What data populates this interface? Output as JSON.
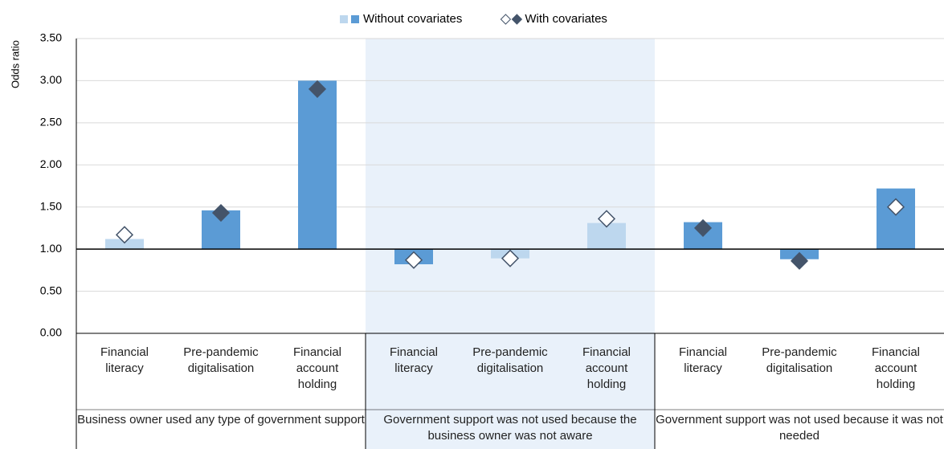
{
  "chart_data": {
    "type": "bar",
    "y_label": "Odds ratio",
    "ylim": [
      0,
      3.5
    ],
    "yticks": [
      {
        "value": 0,
        "label": "0.00"
      },
      {
        "value": 0.5,
        "label": "0.50"
      },
      {
        "value": 1,
        "label": "1.00"
      },
      {
        "value": 1.5,
        "label": "1.50"
      },
      {
        "value": 2,
        "label": "2.00"
      },
      {
        "value": 2.5,
        "label": "2.50"
      },
      {
        "value": 3,
        "label": "3.00"
      },
      {
        "value": 3.5,
        "label": "3.50"
      }
    ],
    "baseline": 1,
    "grid": true,
    "legend": "top",
    "categories": [
      "Financial literacy",
      "Pre-pandemic digitalisation",
      "Financial account holding",
      "Financial literacy",
      "Pre-pandemic digitalisation",
      "Financial account holding",
      "Financial literacy",
      "Pre-pandemic digitalisation",
      "Financial account holding"
    ],
    "groups": [
      {
        "label": "Business owner used any type of government support",
        "size": 3,
        "shaded": false
      },
      {
        "label": "Government support was not used because the business owner was not aware",
        "size": 3,
        "shaded": true
      },
      {
        "label": "Government support was not used because it was not needed",
        "size": 3,
        "shaded": false
      }
    ],
    "series": [
      {
        "name": "Without covariates",
        "mark": "bar",
        "color": [
          "#bdd7ee",
          "#5b9bd5"
        ],
        "values": [
          1.12,
          1.46,
          3.0,
          0.82,
          0.89,
          1.31,
          1.32,
          0.88,
          1.72
        ],
        "point_colors": [
          "#bdd7ee",
          "#5b9bd5",
          "#5b9bd5",
          "#5b9bd5",
          "#bdd7ee",
          "#bdd7ee",
          "#5b9bd5",
          "#5b9bd5",
          "#5b9bd5"
        ]
      },
      {
        "name": "With covariates",
        "mark": "diamond",
        "color": [
          "#ffffff",
          "#44546a"
        ],
        "values": [
          1.17,
          1.43,
          2.9,
          0.87,
          0.89,
          1.36,
          1.25,
          0.86,
          1.5
        ],
        "point_colors": [
          "#ffffff",
          "#44546a",
          "#44546a",
          "#ffffff",
          "#ffffff",
          "#ffffff",
          "#44546a",
          "#44546a",
          "#ffffff"
        ]
      }
    ]
  }
}
